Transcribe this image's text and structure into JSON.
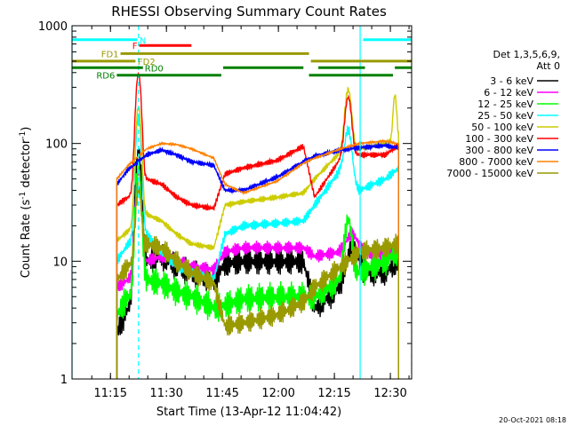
{
  "chart_data": {
    "type": "line",
    "title": "RHESSI Observing Summary Count Rates",
    "xlabel": "Start Time (13-Apr-12 11:04:42)",
    "ylabel_main": "Count Rate (s",
    "ylabel_sup1": "-1",
    "ylabel_mid": " detector",
    "ylabel_sup2": "-1",
    "ylabel_end": ")",
    "footer": "20-Oct-2021 08:18",
    "y_scale": "log",
    "ylim": [
      1,
      1000
    ],
    "xlim_minutes": [
      0,
      91
    ],
    "x_ticks": [
      {
        "label": "11:15",
        "m": 10.3
      },
      {
        "label": "11:30",
        "m": 25.3
      },
      {
        "label": "11:45",
        "m": 40.3
      },
      {
        "label": "12:00",
        "m": 55.3
      },
      {
        "label": "12:15",
        "m": 70.3
      },
      {
        "label": "12:30",
        "m": 85.3
      }
    ],
    "y_ticks": [
      {
        "label": "1",
        "v": 1
      },
      {
        "label": "10",
        "v": 10
      },
      {
        "label": "100",
        "v": 100
      },
      {
        "label": "1000",
        "v": 1000
      }
    ],
    "legend_header": [
      "Det 1,3,5,6,9,",
      "Att 0"
    ],
    "legend_position": "right",
    "grid": false,
    "vlines_cyan": [
      0,
      17.8,
      77.2,
      91
    ],
    "data_gaps": [
      [
        -1,
        12
      ],
      [
        87.5,
        92
      ]
    ],
    "bars": [
      {
        "label": "N",
        "color": "#00ffff",
        "y": 760,
        "segments": [
          [
            0,
            17.5
          ],
          [
            78,
            91
          ]
        ]
      },
      {
        "label": "F",
        "color": "#ff0000",
        "y": 680,
        "segments": [
          [
            18,
            32
          ]
        ]
      },
      {
        "label": "FD1",
        "color": "#999900",
        "y": 580,
        "segments": [
          [
            13,
            63.5
          ]
        ]
      },
      {
        "label": "FD2",
        "color": "#999900",
        "y": 500,
        "segments": [
          [
            0,
            17
          ],
          [
            64,
            91
          ]
        ]
      },
      {
        "label": "RD0",
        "color": "#008000",
        "y": 440,
        "segments": [
          [
            0,
            19
          ],
          [
            40.5,
            62
          ],
          [
            66,
            78.5
          ],
          [
            86.5,
            91
          ]
        ]
      },
      {
        "label": "RD6",
        "color": "#008000",
        "y": 380,
        "segments": [
          [
            12,
            40
          ],
          [
            63.5,
            86
          ]
        ]
      }
    ],
    "series": [
      {
        "name": "3 - 6 keV",
        "color": "#000000",
        "base": [
          [
            12,
            2.5
          ],
          [
            15,
            4
          ],
          [
            20,
            10
          ],
          [
            24,
            11
          ],
          [
            28,
            9
          ],
          [
            32,
            8
          ],
          [
            38,
            7
          ],
          [
            41,
            9.5
          ],
          [
            46,
            10
          ],
          [
            55,
            10
          ],
          [
            62,
            10
          ],
          [
            65,
            4
          ],
          [
            72,
            6
          ],
          [
            77,
            8
          ],
          [
            84,
            8
          ],
          [
            87,
            10
          ]
        ],
        "peaks": [
          {
            "t": 17.8,
            "amp": 80,
            "w": 0.9
          },
          {
            "t": 75,
            "amp": 6,
            "w": 2
          }
        ],
        "noise": 0.28,
        "phase": 1.3
      },
      {
        "name": "6 - 12 keV",
        "color": "#ff00ff",
        "base": [
          [
            12,
            6
          ],
          [
            15,
            7
          ],
          [
            20,
            10
          ],
          [
            24,
            11
          ],
          [
            28,
            10
          ],
          [
            32,
            9
          ],
          [
            38,
            8.5
          ],
          [
            41,
            12
          ],
          [
            46,
            13
          ],
          [
            55,
            13
          ],
          [
            62,
            13
          ],
          [
            65,
            11
          ],
          [
            72,
            12
          ],
          [
            77,
            12
          ],
          [
            84,
            11
          ],
          [
            87,
            13
          ]
        ],
        "peaks": [
          {
            "t": 17.8,
            "amp": 50,
            "w": 0.9
          },
          {
            "t": 75,
            "amp": 5,
            "w": 2
          }
        ],
        "noise": 0.14,
        "phase": 2.1
      },
      {
        "name": "12 - 25 keV",
        "color": "#00ff00",
        "base": [
          [
            12,
            3.5
          ],
          [
            15,
            5
          ],
          [
            20,
            7
          ],
          [
            24,
            6.5
          ],
          [
            28,
            5.5
          ],
          [
            32,
            5
          ],
          [
            38,
            4
          ],
          [
            41,
            4.2
          ],
          [
            46,
            4.8
          ],
          [
            55,
            5
          ],
          [
            62,
            5
          ],
          [
            65,
            5
          ],
          [
            72,
            7
          ],
          [
            77,
            8
          ],
          [
            84,
            10
          ],
          [
            87,
            12
          ]
        ],
        "peaks": [
          {
            "t": 17.8,
            "amp": 55,
            "w": 0.9
          },
          {
            "t": 74,
            "amp": 15,
            "w": 1.2
          }
        ],
        "noise": 0.3,
        "phase": 0.4
      },
      {
        "name": "25 - 50 keV",
        "color": "#00ffff",
        "base": [
          [
            12,
            10
          ],
          [
            15,
            14
          ],
          [
            20,
            17
          ],
          [
            24,
            12
          ],
          [
            28,
            9
          ],
          [
            32,
            8
          ],
          [
            38,
            7
          ],
          [
            41,
            17
          ],
          [
            46,
            20
          ],
          [
            55,
            21
          ],
          [
            62,
            22
          ],
          [
            65,
            30
          ],
          [
            72,
            60
          ],
          [
            77,
            40
          ],
          [
            84,
            50
          ],
          [
            87,
            60
          ]
        ],
        "peaks": [
          {
            "t": 17.8,
            "amp": 150,
            "w": 0.9
          },
          {
            "t": 74,
            "amp": 80,
            "w": 1.2
          }
        ],
        "noise": 0.1,
        "phase": 3.7
      },
      {
        "name": "50 - 100 keV",
        "color": "#cccc00",
        "base": [
          [
            12,
            15
          ],
          [
            15,
            18
          ],
          [
            20,
            25
          ],
          [
            24,
            22
          ],
          [
            28,
            17
          ],
          [
            32,
            14
          ],
          [
            38,
            13
          ],
          [
            41,
            30
          ],
          [
            46,
            32
          ],
          [
            55,
            35
          ],
          [
            62,
            38
          ],
          [
            65,
            50
          ],
          [
            72,
            85
          ],
          [
            77,
            90
          ],
          [
            84,
            100
          ],
          [
            87,
            110
          ]
        ],
        "peaks": [
          {
            "t": 17.8,
            "amp": 180,
            "w": 0.9
          },
          {
            "t": 74,
            "amp": 200,
            "w": 1.1
          },
          {
            "t": 86.5,
            "amp": 150,
            "w": 0.6
          }
        ],
        "noise": 0.06,
        "phase": 5.2
      },
      {
        "name": "100 - 300 keV",
        "color": "#ff0000",
        "base": [
          [
            12,
            30
          ],
          [
            15,
            35
          ],
          [
            20,
            50
          ],
          [
            24,
            45
          ],
          [
            28,
            35
          ],
          [
            32,
            30
          ],
          [
            38,
            28
          ],
          [
            41,
            55
          ],
          [
            46,
            62
          ],
          [
            55,
            72
          ],
          [
            62,
            95
          ],
          [
            65,
            35
          ],
          [
            72,
            75
          ],
          [
            77,
            80
          ],
          [
            84,
            80
          ],
          [
            87,
            95
          ]
        ],
        "peaks": [
          {
            "t": 17.8,
            "amp": 350,
            "w": 0.9
          },
          {
            "t": 74,
            "amp": 170,
            "w": 1.1
          }
        ],
        "noise": 0.06,
        "phase": 0.9
      },
      {
        "name": "300 - 800 keV",
        "color": "#0000ff",
        "base": [
          [
            12,
            45
          ],
          [
            15,
            60
          ],
          [
            20,
            80
          ],
          [
            24,
            88
          ],
          [
            28,
            80
          ],
          [
            32,
            70
          ],
          [
            38,
            65
          ],
          [
            41,
            40
          ],
          [
            46,
            40
          ],
          [
            55,
            52
          ],
          [
            62,
            70
          ],
          [
            65,
            78
          ],
          [
            72,
            88
          ],
          [
            77,
            92
          ],
          [
            84,
            96
          ],
          [
            87,
            92
          ]
        ],
        "peaks": [],
        "noise": 0.05,
        "phase": 4.4
      },
      {
        "name": "800 - 7000 keV",
        "color": "#ff8000",
        "base": [
          [
            12,
            50
          ],
          [
            15,
            65
          ],
          [
            20,
            90
          ],
          [
            24,
            100
          ],
          [
            28,
            98
          ],
          [
            32,
            90
          ],
          [
            38,
            75
          ],
          [
            41,
            45
          ],
          [
            46,
            38
          ],
          [
            55,
            48
          ],
          [
            62,
            68
          ],
          [
            65,
            75
          ],
          [
            72,
            90
          ],
          [
            77,
            100
          ],
          [
            84,
            105
          ],
          [
            87,
            100
          ]
        ],
        "peaks": [],
        "noise": 0.02,
        "phase": 2.8
      },
      {
        "name": "7000 - 15000 keV",
        "color": "#999900",
        "base": [
          [
            12,
            7
          ],
          [
            15,
            9
          ],
          [
            20,
            14
          ],
          [
            24,
            13
          ],
          [
            28,
            10
          ],
          [
            32,
            8
          ],
          [
            38,
            6.5
          ],
          [
            41,
            2.8
          ],
          [
            46,
            3
          ],
          [
            55,
            3.5
          ],
          [
            62,
            4.5
          ],
          [
            65,
            6
          ],
          [
            72,
            9
          ],
          [
            77,
            12
          ],
          [
            84,
            13
          ],
          [
            87,
            14
          ]
        ],
        "peaks": [
          {
            "t": 17.8,
            "amp": 30,
            "w": 0.9
          }
        ],
        "noise": 0.22,
        "phase": 6.1
      }
    ]
  }
}
